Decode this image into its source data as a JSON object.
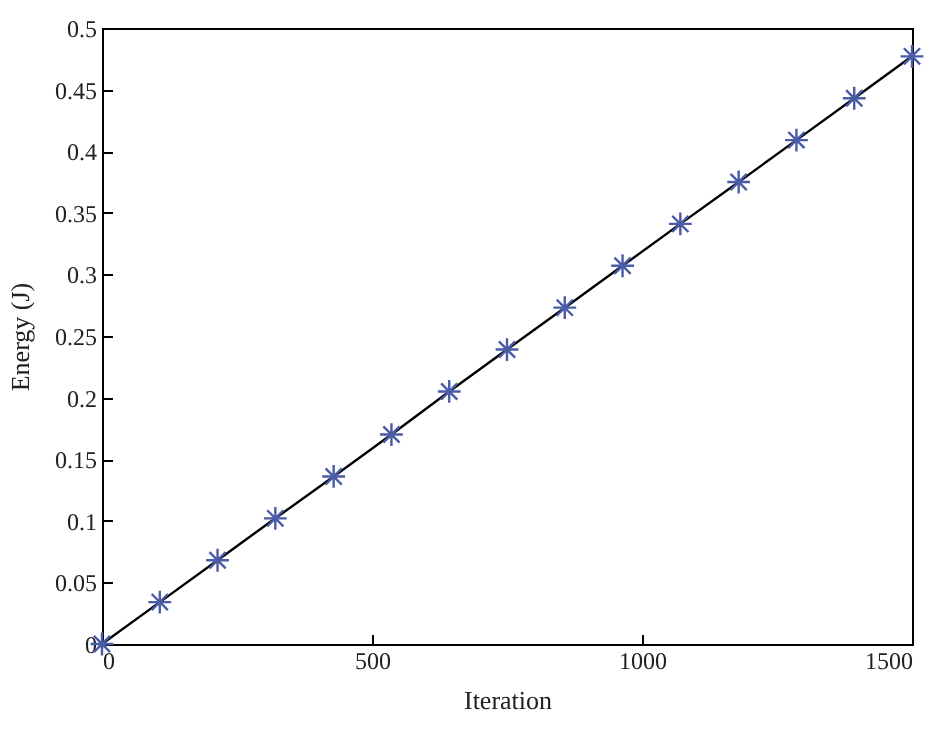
{
  "chart_data": {
    "type": "line",
    "xlabel": "Iteration",
    "ylabel": "Energy (J)",
    "x": [
      0,
      107,
      214,
      321,
      429,
      536,
      643,
      750,
      857,
      964,
      1071,
      1179,
      1286,
      1393,
      1500
    ],
    "series": [
      {
        "color": "#000000",
        "marker": "none",
        "values": [
          0,
          0.034,
          0.068,
          0.102,
          0.136,
          0.17,
          0.205,
          0.239,
          0.273,
          0.307,
          0.341,
          0.375,
          0.409,
          0.443,
          0.477
        ]
      },
      {
        "type": "scatter",
        "color": "#4a5ba8",
        "marker": "cross",
        "values": [
          0,
          0.034,
          0.068,
          0.102,
          0.136,
          0.17,
          0.205,
          0.239,
          0.273,
          0.307,
          0.341,
          0.375,
          0.409,
          0.443,
          0.477
        ]
      }
    ],
    "xlim": [
      0,
      1500
    ],
    "xticks": [
      0,
      500,
      1000,
      1500
    ],
    "ylim": [
      0,
      0.5
    ],
    "yticks": [
      0,
      0.05,
      0.1,
      0.15,
      0.2,
      0.25,
      0.3,
      0.35,
      0.4,
      0.45,
      0.5
    ],
    "grid": false
  }
}
